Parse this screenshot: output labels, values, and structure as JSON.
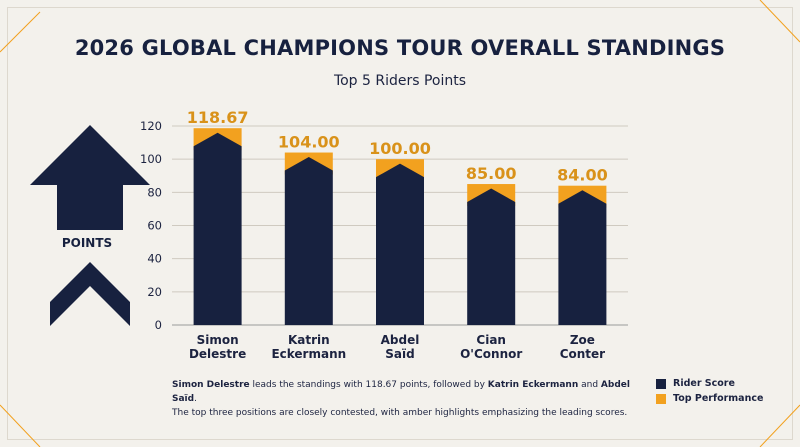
{
  "title": "2026 GLOBAL CHAMPIONS TOUR OVERALL STANDINGS",
  "subtitle": "Top 5 Riders Points",
  "side_label": "POINTS",
  "caption": {
    "lead_name": "Simon Delestre",
    "text1": " leads the standings with 118.67 points, followed by ",
    "second_name": "Katrin Eckermann",
    "text2": " and ",
    "third_name": "Abdel Saïd",
    "text3": ".",
    "line2": "The top three positions are closely contested, with amber highlights emphasizing the leading scores."
  },
  "legend": [
    {
      "label": "Rider Score",
      "color": "#17213f"
    },
    {
      "label": "Top Performance",
      "color": "#f2a11f"
    }
  ],
  "colors": {
    "navy": "#17213f",
    "amber": "#f2a11f",
    "amber_text": "#d9921a"
  },
  "chart_data": {
    "type": "bar",
    "categories": [
      [
        "Simon",
        "Delestre"
      ],
      [
        "Katrin",
        "Eckermann"
      ],
      [
        "Abdel",
        "Saïd"
      ],
      [
        "Cian",
        "O'Connor"
      ],
      [
        "Zoe",
        "Conter"
      ]
    ],
    "values": [
      118.67,
      104.0,
      100.0,
      85.0,
      84.0
    ],
    "value_labels": [
      "118.67",
      "104.00",
      "100.00",
      "85.00",
      "84.00"
    ],
    "ylim": [
      0,
      120
    ],
    "yticks": [
      0,
      20,
      40,
      60,
      80,
      100,
      120
    ],
    "grid": true
  }
}
